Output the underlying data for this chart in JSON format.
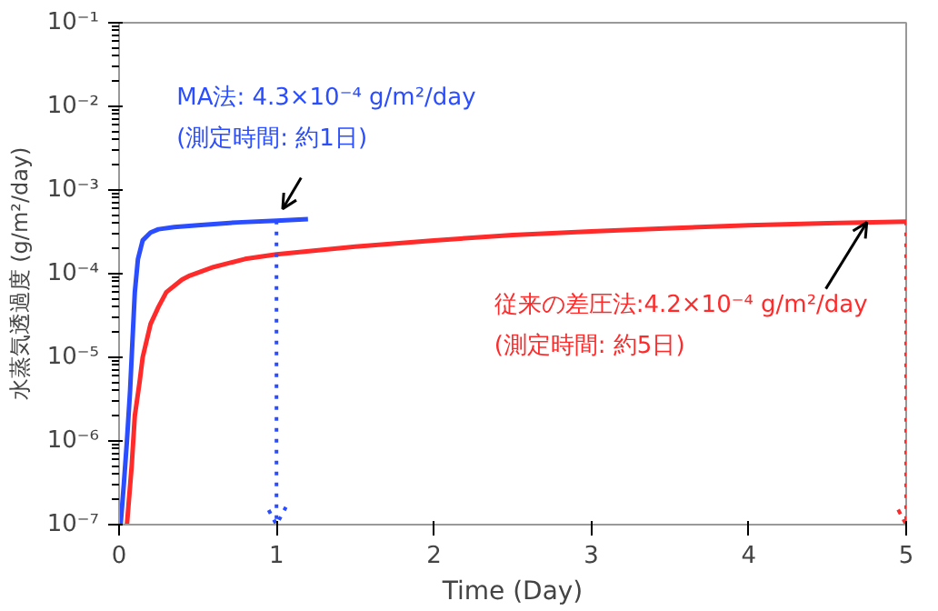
{
  "chart_data": {
    "type": "line",
    "xlabel": "Time (Day)",
    "ylabel": "水蒸気透過度 (g/m²/day)",
    "log": "y",
    "grid": false,
    "marker": "none",
    "line_style": "solid",
    "xlim": [
      0,
      5
    ],
    "xticks": [
      0,
      1,
      2,
      3,
      4,
      5
    ],
    "ylim": [
      1e-07,
      0.1
    ],
    "yticks": [
      {
        "value": 1e-07,
        "label": "10⁻⁷"
      },
      {
        "value": 1e-06,
        "label": "10⁻⁶"
      },
      {
        "value": 1e-05,
        "label": "10⁻⁵"
      },
      {
        "value": 0.0001,
        "label": "10⁻⁴"
      },
      {
        "value": 0.001,
        "label": "10⁻³"
      },
      {
        "value": 0.01,
        "label": "10⁻²"
      },
      {
        "value": 0.1,
        "label": "10⁻¹"
      }
    ],
    "series": [
      {
        "color": "#2a4dff",
        "x": [
          0.01,
          0.03,
          0.05,
          0.07,
          0.08,
          0.1,
          0.12,
          0.15,
          0.2,
          0.25,
          0.35,
          0.5,
          0.75,
          1.0,
          1.2
        ],
        "values": [
          1e-07,
          3e-07,
          1e-06,
          4e-06,
          1e-05,
          6e-05,
          0.00015,
          0.00025,
          0.00031,
          0.00034,
          0.00036,
          0.00038,
          0.00041,
          0.00043,
          0.00045
        ]
      },
      {
        "color": "#ff2a2a",
        "x": [
          0.05,
          0.08,
          0.1,
          0.13,
          0.15,
          0.2,
          0.25,
          0.3,
          0.4,
          0.45,
          0.6,
          0.8,
          1.0,
          1.5,
          2.0,
          2.5,
          3.0,
          3.5,
          4.0,
          4.5,
          5.0
        ],
        "values": [
          1e-07,
          5e-07,
          2e-06,
          5e-06,
          1e-05,
          2.5e-05,
          4e-05,
          6e-05,
          8.5e-05,
          9.5e-05,
          0.00012,
          0.00015,
          0.00017,
          0.00021,
          0.00025,
          0.00029,
          0.00032,
          0.00035,
          0.00038,
          0.0004,
          0.00042
        ]
      }
    ],
    "ref_lines": [
      {
        "axis": "x",
        "value": 1,
        "color": "#2a4dff",
        "line_style": "dotted"
      },
      {
        "axis": "x",
        "value": 5,
        "color": "#ff2a2a",
        "line_style": "dotted"
      }
    ],
    "annotations": [
      {
        "text": "MA法: 4.3×10⁻⁴ g/m²/day\n(測定時間: 約1日)",
        "x": 1,
        "y": 0.00043
      },
      {
        "text": "従来の差圧法:4.2×10⁻⁴ g/m²/day\n(測定時間: 約5日)",
        "x": 4.75,
        "y": 0.00041
      }
    ]
  }
}
